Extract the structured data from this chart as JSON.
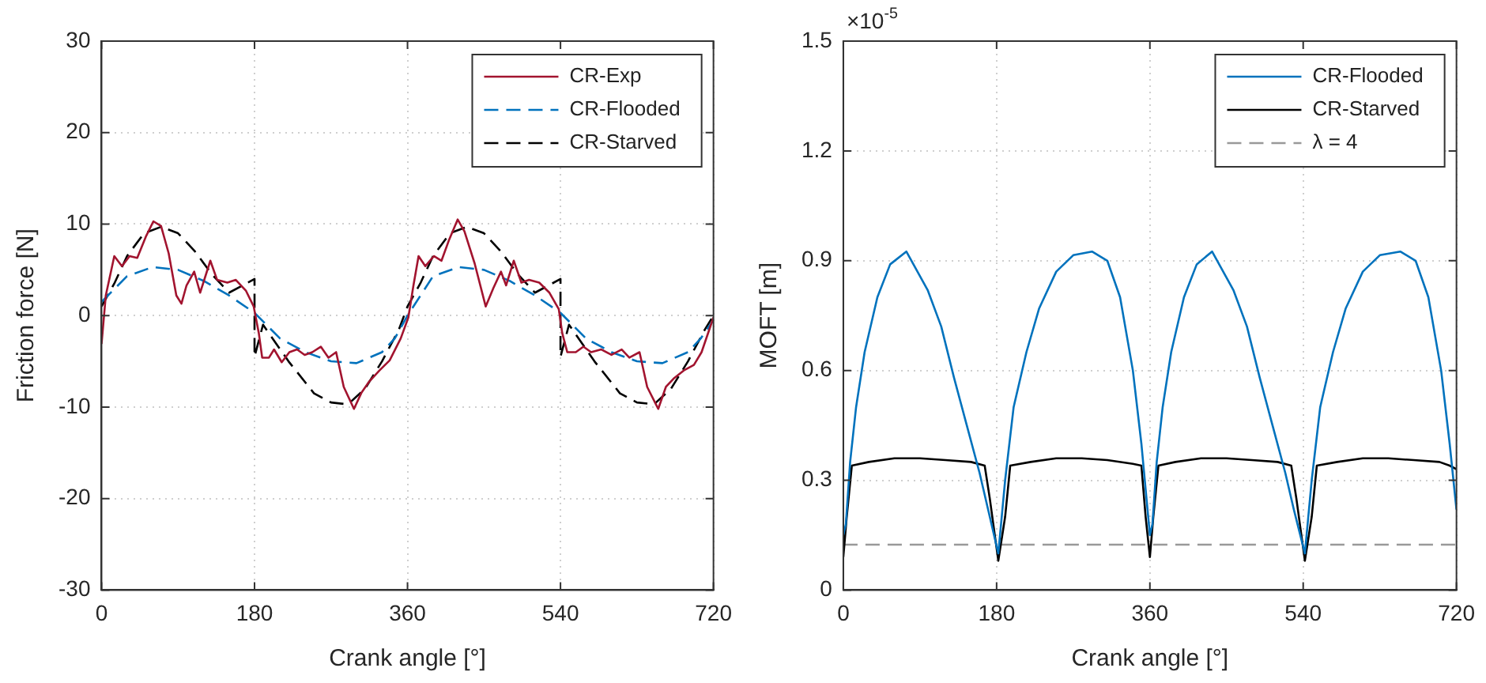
{
  "chart_data": [
    {
      "type": "line",
      "xlabel": "Crank angle [°]",
      "ylabel": "Friction force [N]",
      "xlim": [
        0,
        720
      ],
      "xticks": [
        0,
        180,
        360,
        540,
        720
      ],
      "ylim": [
        -30,
        30
      ],
      "yticks": [
        -30,
        -20,
        -10,
        0,
        10,
        20,
        30
      ],
      "grid": true,
      "legend": "top right",
      "marker": "none",
      "series": [
        {
          "name": "CR-Exp",
          "color": "#a2142f",
          "line_style": "solid",
          "x": [
            0,
            5,
            15,
            24,
            33,
            42,
            52,
            61,
            70,
            79,
            88,
            94,
            100,
            109,
            116,
            128,
            136,
            148,
            158,
            170,
            179,
            185,
            189,
            197,
            203,
            212,
            221,
            230,
            239,
            248,
            258,
            267,
            276,
            285,
            297,
            306,
            315,
            327,
            339,
            352,
            361,
            367,
            373,
            381,
            391,
            400,
            409,
            419,
            427,
            439,
            452,
            461,
            470,
            476,
            485,
            494,
            503,
            515,
            527,
            538,
            542,
            548,
            558,
            567,
            576,
            588,
            600,
            612,
            621,
            633,
            642,
            655,
            664,
            673,
            685,
            697,
            706,
            720
          ],
          "values": [
            -3.1,
            2.2,
            6.5,
            5.4,
            6.5,
            6.3,
            8.6,
            10.3,
            9.8,
            6.8,
            2.2,
            1.3,
            3.3,
            4.8,
            2.5,
            6.0,
            3.9,
            3.6,
            3.9,
            2.7,
            1.0,
            -1.9,
            -4.6,
            -4.6,
            -3.7,
            -5.1,
            -4.0,
            -3.7,
            -4.3,
            -4.0,
            -3.4,
            -4.6,
            -4.0,
            -7.8,
            -10.2,
            -8.4,
            -7.2,
            -6.0,
            -4.9,
            -2.5,
            -0.2,
            3.3,
            6.5,
            5.4,
            6.5,
            6.0,
            8.3,
            10.5,
            9.2,
            5.7,
            1.0,
            3.0,
            4.8,
            3.3,
            6.0,
            3.6,
            3.9,
            3.6,
            2.5,
            0.7,
            -1.9,
            -4.0,
            -4.0,
            -3.4,
            -4.0,
            -3.7,
            -4.3,
            -3.7,
            -4.6,
            -4.0,
            -7.8,
            -10.2,
            -7.8,
            -6.9,
            -6.0,
            -5.4,
            -4.0,
            -0.2
          ]
        },
        {
          "name": "CR-Flooded",
          "color": "#0072bd",
          "line_style": "dashed",
          "x": [
            0,
            30,
            60,
            90,
            120,
            150,
            180,
            210,
            240,
            270,
            300,
            330,
            345,
            360,
            390,
            420,
            450,
            480,
            510,
            540,
            570,
            600,
            630,
            660,
            690,
            705,
            720
          ],
          "values": [
            1.5,
            4.3,
            5.3,
            5.0,
            3.8,
            2.2,
            0.3,
            -2.5,
            -4.0,
            -5.0,
            -5.2,
            -4.0,
            -2.5,
            0,
            4.3,
            5.3,
            5.0,
            3.8,
            2.2,
            0.3,
            -2.5,
            -4.0,
            -5.0,
            -5.2,
            -4.0,
            -2.5,
            -0.5
          ]
        },
        {
          "name": "CR-Starved",
          "color": "#000000",
          "line_style": "dashed",
          "x": [
            0,
            15,
            30,
            50,
            70,
            90,
            110,
            130,
            150,
            180,
            180,
            190,
            220,
            250,
            270,
            290,
            310,
            330,
            350,
            360,
            375,
            390,
            410,
            430,
            450,
            470,
            490,
            510,
            540,
            540,
            550,
            580,
            610,
            630,
            650,
            670,
            690,
            710,
            720
          ],
          "values": [
            1,
            3.5,
            6.5,
            9,
            9.7,
            9.0,
            7.0,
            4.5,
            2.5,
            4,
            -4.5,
            -1,
            -5,
            -8.5,
            -9.5,
            -9.7,
            -8,
            -5,
            -1.5,
            1,
            3.5,
            6.5,
            9,
            9.7,
            9.0,
            7.0,
            4.5,
            2.5,
            4,
            -4.5,
            -1,
            -5,
            -8.5,
            -9.5,
            -9.7,
            -8,
            -5,
            -1.5,
            0
          ]
        }
      ]
    },
    {
      "type": "line",
      "xlabel": "Crank angle [°]",
      "ylabel": "MOFT [m]",
      "annotations": [
        "×10$^{-5}$"
      ],
      "xlim": [
        0,
        720
      ],
      "xticks": [
        0,
        180,
        360,
        540,
        720
      ],
      "ylim": [
        0,
        1.5
      ],
      "yticks": [
        0,
        0.3,
        0.6,
        0.9,
        1.2,
        1.5
      ],
      "grid": true,
      "legend": "top right",
      "marker": "none",
      "series": [
        {
          "name": "CR-Flooded",
          "color": "#0072bd",
          "line_style": "solid",
          "x": [
            0,
            3,
            8,
            15,
            25,
            40,
            55,
            74,
            99,
            115,
            130,
            145,
            160,
            170,
            182,
            190,
            200,
            215,
            230,
            250,
            270,
            292,
            310,
            325,
            340,
            350,
            356,
            360,
            363,
            368,
            375,
            385,
            400,
            415,
            433,
            458,
            474,
            489,
            504,
            519,
            529,
            542,
            550,
            560,
            575,
            590,
            610,
            630,
            654,
            672,
            687,
            702,
            712,
            720
          ],
          "values": [
            0.15,
            0.18,
            0.35,
            0.5,
            0.65,
            0.8,
            0.89,
            0.925,
            0.82,
            0.72,
            0.58,
            0.45,
            0.32,
            0.22,
            0.1,
            0.3,
            0.5,
            0.65,
            0.77,
            0.87,
            0.915,
            0.925,
            0.9,
            0.8,
            0.6,
            0.4,
            0.25,
            0.15,
            0.18,
            0.35,
            0.5,
            0.65,
            0.8,
            0.89,
            0.925,
            0.82,
            0.72,
            0.58,
            0.45,
            0.32,
            0.22,
            0.1,
            0.3,
            0.5,
            0.65,
            0.77,
            0.87,
            0.915,
            0.925,
            0.9,
            0.8,
            0.6,
            0.4,
            0.22
          ]
        },
        {
          "name": "CR-Starved",
          "color": "#000000",
          "line_style": "solid",
          "x": [
            0,
            4,
            10,
            30,
            60,
            90,
            120,
            150,
            166,
            172,
            182,
            190,
            196,
            220,
            250,
            280,
            310,
            340,
            350,
            355,
            360,
            364,
            370,
            390,
            420,
            450,
            480,
            510,
            526,
            532,
            542,
            550,
            556,
            580,
            610,
            640,
            670,
            700,
            712,
            720
          ],
          "values": [
            0.09,
            0.2,
            0.34,
            0.35,
            0.36,
            0.36,
            0.355,
            0.35,
            0.34,
            0.25,
            0.08,
            0.2,
            0.34,
            0.35,
            0.36,
            0.36,
            0.355,
            0.345,
            0.34,
            0.2,
            0.09,
            0.2,
            0.34,
            0.35,
            0.36,
            0.36,
            0.355,
            0.35,
            0.34,
            0.25,
            0.08,
            0.2,
            0.34,
            0.35,
            0.36,
            0.36,
            0.355,
            0.35,
            0.34,
            0.33
          ]
        },
        {
          "name": "λ = 4",
          "color": "#999999",
          "line_style": "dashed",
          "x": [
            0,
            720
          ],
          "values": [
            0.124,
            0.124
          ]
        }
      ]
    }
  ]
}
